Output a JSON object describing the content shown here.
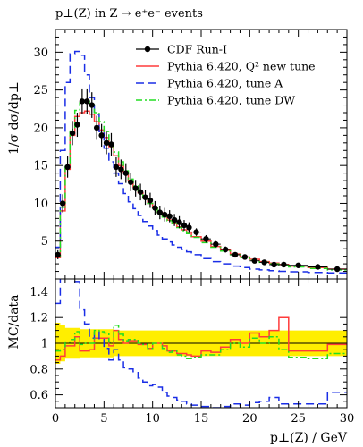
{
  "chart_data": [
    {
      "type": "line",
      "title": "p⊥(Z) in Z → e⁺e⁻ events",
      "ylabel": "1/σ dσ/dp⊥",
      "xlabel": "",
      "xlim": [
        0,
        30
      ],
      "ylim": [
        0,
        33
      ],
      "yticks": [
        5,
        10,
        15,
        20,
        25,
        30
      ],
      "legend_position": "top-right",
      "bin_edges": [
        0,
        0.5,
        1,
        1.5,
        2,
        2.5,
        3,
        3.5,
        4,
        4.5,
        5,
        5.5,
        6,
        6.5,
        7,
        7.5,
        8,
        8.5,
        9,
        9.5,
        10,
        10.5,
        11,
        11.5,
        12,
        12.5,
        13,
        13.5,
        14,
        15,
        16,
        17,
        18,
        19,
        20,
        21,
        22,
        23,
        24,
        26,
        28,
        30
      ],
      "series": [
        {
          "name": "CDF Run-I",
          "kind": "points",
          "color": "#000000",
          "x": [
            0.25,
            0.75,
            1.25,
            1.75,
            2.25,
            2.75,
            3.25,
            3.75,
            4.25,
            4.75,
            5.25,
            5.75,
            6.25,
            6.75,
            7.25,
            7.75,
            8.25,
            8.75,
            9.25,
            9.75,
            10.25,
            10.75,
            11.25,
            11.75,
            12.25,
            12.75,
            13.25,
            13.75,
            14.5,
            15.5,
            16.5,
            17.5,
            18.5,
            19.5,
            20.5,
            21.5,
            22.5,
            23.5,
            25,
            27,
            29
          ],
          "y": [
            3.2,
            10.0,
            14.8,
            19.3,
            20.4,
            23.5,
            23.5,
            23.0,
            20.0,
            19.0,
            18.0,
            17.8,
            14.8,
            14.5,
            14.0,
            12.8,
            12.0,
            11.5,
            10.8,
            10.4,
            9.4,
            8.8,
            8.5,
            8.3,
            7.8,
            7.5,
            7.1,
            6.8,
            6.2,
            5.3,
            4.6,
            3.9,
            3.2,
            2.9,
            2.4,
            2.2,
            1.9,
            1.9,
            1.8,
            1.6,
            1.3
          ],
          "yerr": [
            0.6,
            1.2,
            1.4,
            1.6,
            1.6,
            1.7,
            1.7,
            1.7,
            1.6,
            1.5,
            1.5,
            1.5,
            1.3,
            1.3,
            1.3,
            1.2,
            1.1,
            1.1,
            1.0,
            1.0,
            0.9,
            0.9,
            0.9,
            0.8,
            0.8,
            0.8,
            0.7,
            0.7,
            0.5,
            0.5,
            0.4,
            0.4,
            0.3,
            0.3,
            0.3,
            0.3,
            0.3,
            0.3,
            0.2,
            0.2,
            0.2
          ]
        },
        {
          "name": "Pythia 6.420, Q² new tune",
          "kind": "step",
          "color": "#ff3b3b",
          "dash": "",
          "y": [
            2.8,
            9.0,
            14.5,
            19.0,
            21.5,
            22.0,
            22.2,
            21.8,
            20.8,
            19.7,
            18.7,
            17.5,
            16.3,
            15.0,
            14.0,
            13.0,
            12.2,
            11.4,
            10.7,
            10.0,
            9.4,
            8.8,
            8.3,
            7.8,
            7.3,
            6.9,
            6.5,
            6.2,
            5.6,
            5.0,
            4.3,
            3.8,
            3.3,
            2.9,
            2.6,
            2.3,
            2.1,
            1.9,
            1.7,
            1.5,
            1.3
          ]
        },
        {
          "name": "Pythia 6.420, tune A",
          "kind": "step",
          "color": "#1a2ee6",
          "dash": "9,5",
          "y": [
            4.2,
            17.0,
            26.0,
            29.8,
            30.1,
            29.6,
            27.0,
            24.0,
            21.8,
            19.5,
            17.3,
            15.5,
            14.0,
            12.6,
            11.3,
            10.2,
            9.3,
            8.4,
            7.6,
            7.0,
            6.4,
            5.8,
            5.3,
            4.9,
            4.5,
            4.2,
            3.9,
            3.6,
            3.2,
            2.7,
            2.3,
            2.0,
            1.7,
            1.5,
            1.3,
            1.2,
            1.1,
            1.0,
            0.95,
            0.85,
            0.8
          ]
        },
        {
          "name": "Pythia 6.420, tune DW",
          "kind": "step",
          "color": "#22dd22",
          "dash": "7,3,2,3",
          "y": [
            3.0,
            9.5,
            15.0,
            19.8,
            22.3,
            23.3,
            23.5,
            23.0,
            22.0,
            20.8,
            19.5,
            18.0,
            16.8,
            15.5,
            14.3,
            13.2,
            12.3,
            11.5,
            10.7,
            10.0,
            9.4,
            8.8,
            8.2,
            7.7,
            7.3,
            6.8,
            6.4,
            6.0,
            5.5,
            4.8,
            4.2,
            3.7,
            3.2,
            2.8,
            2.5,
            2.2,
            2.0,
            1.8,
            1.6,
            1.4,
            1.2
          ]
        }
      ]
    },
    {
      "type": "line",
      "title": "",
      "ylabel": "MC/data",
      "xlabel": "p⊥(Z) / GeV",
      "xlim": [
        0,
        30
      ],
      "ylim": [
        0.5,
        1.5
      ],
      "xticks": [
        0,
        5,
        10,
        15,
        20,
        25,
        30
      ],
      "yticks": [
        0.6,
        0.8,
        1,
        1.2,
        1.4
      ],
      "band": {
        "color": "#ffee00",
        "lower": [
          0.84,
          0.86,
          0.88,
          0.88,
          0.88,
          0.89,
          0.89,
          0.89,
          0.89,
          0.89,
          0.89,
          0.89,
          0.9,
          0.9,
          0.9,
          0.9,
          0.9,
          0.9,
          0.9,
          0.9,
          0.9,
          0.9,
          0.9,
          0.9,
          0.9,
          0.9,
          0.9,
          0.9,
          0.9,
          0.9,
          0.9,
          0.9,
          0.9,
          0.9,
          0.9,
          0.9,
          0.9,
          0.9,
          0.9,
          0.9,
          0.9
        ],
        "upper": [
          1.16,
          1.14,
          1.12,
          1.12,
          1.12,
          1.11,
          1.11,
          1.11,
          1.11,
          1.11,
          1.11,
          1.11,
          1.1,
          1.1,
          1.1,
          1.1,
          1.1,
          1.1,
          1.1,
          1.1,
          1.1,
          1.1,
          1.1,
          1.1,
          1.1,
          1.1,
          1.1,
          1.1,
          1.1,
          1.1,
          1.1,
          1.1,
          1.1,
          1.1,
          1.1,
          1.1,
          1.1,
          1.1,
          1.1,
          1.1,
          1.1
        ]
      },
      "series": [
        {
          "name": "Pythia 6.420, Q² new tune",
          "color": "#ff3b3b",
          "dash": "",
          "y": [
            0.87,
            0.9,
            0.98,
            0.98,
            1.05,
            0.94,
            0.94,
            0.95,
            1.04,
            1.04,
            1.04,
            0.98,
            1.1,
            1.03,
            1.0,
            1.02,
            1.02,
            0.99,
            0.99,
            0.96,
            1.0,
            1.0,
            0.98,
            0.94,
            0.94,
            0.92,
            0.92,
            0.91,
            0.9,
            0.94,
            0.93,
            0.97,
            1.03,
            1.0,
            1.08,
            1.05,
            1.1,
            1.2,
            0.94,
            0.94,
            0.99
          ]
        },
        {
          "name": "Pythia 6.420, tune A",
          "color": "#1a2ee6",
          "dash": "9,5",
          "y": [
            1.31,
            1.7,
            1.76,
            1.54,
            1.48,
            1.26,
            1.15,
            1.04,
            1.09,
            1.03,
            0.96,
            0.87,
            0.95,
            0.87,
            0.81,
            0.8,
            0.78,
            0.73,
            0.7,
            0.67,
            0.68,
            0.66,
            0.62,
            0.59,
            0.58,
            0.56,
            0.55,
            0.53,
            0.52,
            0.51,
            0.5,
            0.51,
            0.53,
            0.52,
            0.54,
            0.55,
            0.58,
            0.53,
            0.53,
            0.53,
            0.62
          ]
        },
        {
          "name": "Pythia 6.420, tune DW",
          "color": "#22dd22",
          "dash": "7,3,2,3",
          "y": [
            0.94,
            0.95,
            1.01,
            1.03,
            1.09,
            0.99,
            1.0,
            1.0,
            1.1,
            1.09,
            1.08,
            1.01,
            1.14,
            1.07,
            1.02,
            1.03,
            1.03,
            1.0,
            0.99,
            0.96,
            1.0,
            1.0,
            0.96,
            0.93,
            0.94,
            0.91,
            0.9,
            0.88,
            0.89,
            0.91,
            0.91,
            0.95,
            1.0,
            0.97,
            1.04,
            1.0,
            1.05,
            0.95,
            0.89,
            0.88,
            0.92
          ]
        }
      ]
    }
  ]
}
